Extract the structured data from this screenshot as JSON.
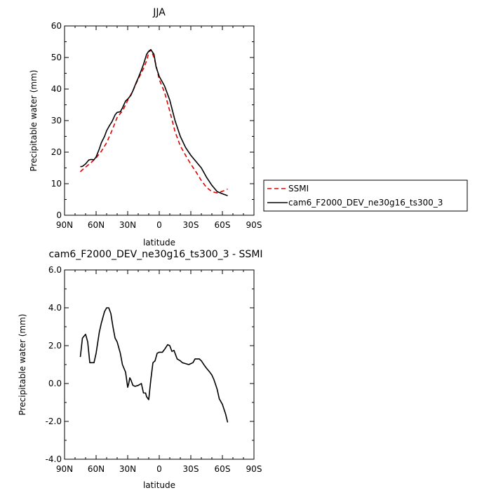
{
  "chart_data": [
    {
      "type": "line",
      "title": "JJA",
      "xlabel": "latitude",
      "ylabel": "Precipitable water (mm)",
      "xlim": [
        90,
        -90
      ],
      "ylim": [
        0,
        60
      ],
      "x_ticks": [
        90,
        60,
        30,
        0,
        -30,
        -60,
        -90
      ],
      "x_tick_labels": [
        "90N",
        "60N",
        "30N",
        "0",
        "30S",
        "60S",
        "90S"
      ],
      "y_ticks": [
        0,
        10,
        20,
        30,
        40,
        50,
        60
      ],
      "y_tick_labels": [
        "0",
        "10",
        "20",
        "30",
        "40",
        "50",
        "60"
      ],
      "legend_position": "right",
      "series": [
        {
          "name": "SSMI",
          "color": "#e00000",
          "dash": "dashed",
          "x": [
            75,
            70,
            65,
            60,
            55,
            50,
            45,
            40,
            37,
            35,
            30,
            25,
            20,
            15,
            12,
            10,
            8,
            5,
            3,
            0,
            -5,
            -10,
            -15,
            -20,
            -25,
            -30,
            -35,
            -40,
            -45,
            -50,
            -55,
            -60,
            -65
          ],
          "y": [
            13.8,
            15.3,
            16.6,
            18.2,
            20.3,
            23.0,
            26.8,
            31.0,
            32.3,
            33.0,
            36.4,
            39.5,
            43.2,
            46.5,
            49.0,
            51.5,
            52.5,
            50.0,
            47.5,
            43.0,
            39.0,
            33.0,
            26.5,
            22.0,
            19.0,
            16.2,
            13.7,
            11.0,
            8.8,
            7.5,
            7.1,
            7.6,
            8.3
          ]
        },
        {
          "name": "cam6_F2000_DEV_ne30g16_ts300_3",
          "color": "#000000",
          "dash": "solid",
          "x": [
            75,
            73,
            70,
            67,
            65,
            62,
            60,
            57,
            55,
            52,
            50,
            47,
            45,
            42,
            40,
            37,
            35,
            32,
            30,
            27,
            25,
            22,
            20,
            17,
            15,
            12,
            10,
            8,
            5,
            3,
            0,
            -5,
            -10,
            -15,
            -20,
            -25,
            -30,
            -35,
            -40,
            -45,
            -50,
            -55,
            -60,
            -65
          ],
          "y": [
            15.4,
            15.5,
            16.3,
            17.5,
            17.7,
            17.6,
            18.5,
            21.0,
            23.0,
            25.0,
            26.8,
            28.6,
            29.6,
            31.8,
            32.6,
            32.8,
            34.0,
            36.2,
            36.8,
            38.0,
            39.5,
            42.0,
            43.5,
            46.0,
            47.8,
            51.0,
            52.0,
            52.5,
            51.0,
            47.0,
            44.0,
            41.0,
            36.5,
            30.0,
            25.0,
            21.5,
            19.0,
            17.0,
            15.0,
            12.0,
            9.5,
            7.5,
            6.8,
            6.2
          ]
        }
      ]
    },
    {
      "type": "line",
      "title": "cam6_F2000_DEV_ne30g16_ts300_3 - SSMI",
      "xlabel": "latitude",
      "ylabel": "Precipitable water (mm)",
      "xlim": [
        90,
        -90
      ],
      "ylim": [
        -4,
        6
      ],
      "x_ticks": [
        90,
        60,
        30,
        0,
        -30,
        -60,
        -90
      ],
      "x_tick_labels": [
        "90N",
        "60N",
        "30N",
        "0",
        "30S",
        "60S",
        "90S"
      ],
      "y_ticks": [
        -4,
        -2,
        0,
        2,
        4,
        6
      ],
      "y_tick_labels": [
        "-4.0",
        "-2.0",
        "0.0",
        "2.0",
        "4.0",
        "6.0"
      ],
      "series": [
        {
          "color": "#000000",
          "dash": "solid",
          "x": [
            75,
            73,
            70,
            68,
            66,
            64,
            62,
            60,
            57,
            55,
            52,
            50,
            48,
            46,
            44,
            42,
            40,
            37,
            35,
            32,
            31,
            30,
            29,
            28,
            27,
            25,
            23,
            20,
            17,
            15,
            13,
            12,
            10,
            8,
            6,
            4,
            3,
            2,
            0,
            -3,
            -5,
            -8,
            -10,
            -12,
            -14,
            -17,
            -20,
            -22,
            -25,
            -28,
            -30,
            -32,
            -34,
            -36,
            -38,
            -40,
            -43,
            -45,
            -48,
            -50,
            -52,
            -55,
            -57,
            -60,
            -63,
            -65
          ],
          "y": [
            1.4,
            2.4,
            2.6,
            2.2,
            1.1,
            1.1,
            1.1,
            1.6,
            2.7,
            3.2,
            3.8,
            4.0,
            4.0,
            3.7,
            3.0,
            2.4,
            2.2,
            1.6,
            1.0,
            0.6,
            0.2,
            -0.2,
            0.0,
            0.3,
            0.2,
            -0.1,
            -0.15,
            -0.1,
            0.0,
            -0.5,
            -0.5,
            -0.7,
            -0.85,
            0.2,
            1.1,
            1.2,
            1.4,
            1.6,
            1.65,
            1.65,
            1.8,
            2.05,
            2.0,
            1.7,
            1.75,
            1.3,
            1.2,
            1.1,
            1.05,
            1.0,
            1.05,
            1.1,
            1.3,
            1.3,
            1.3,
            1.2,
            0.95,
            0.8,
            0.6,
            0.45,
            0.2,
            -0.3,
            -0.8,
            -1.1,
            -1.6,
            -2.05
          ]
        }
      ]
    }
  ]
}
